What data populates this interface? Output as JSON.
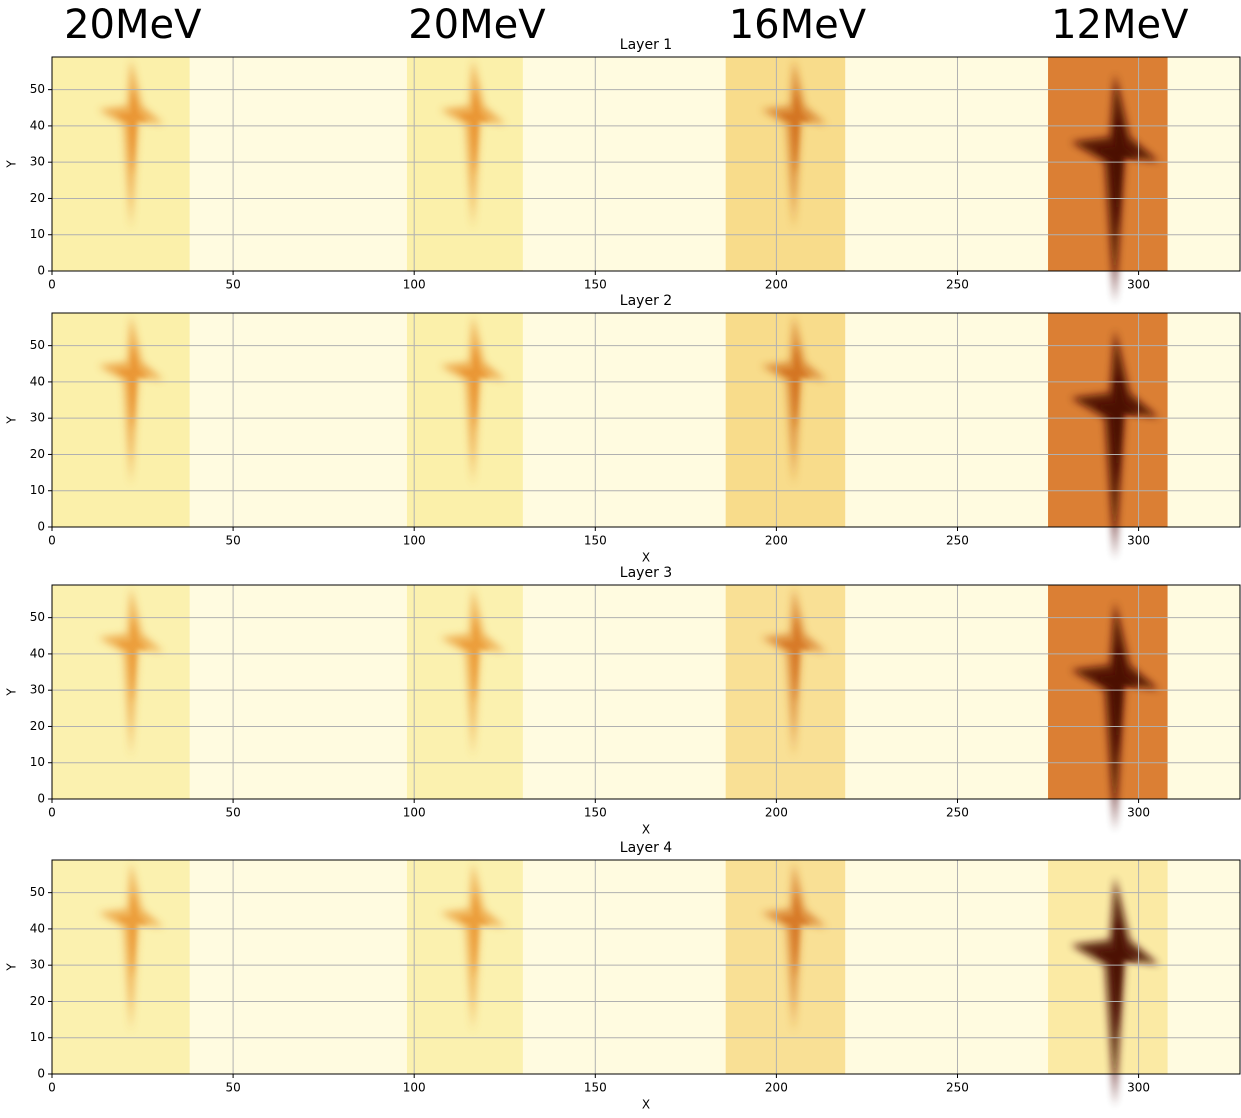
{
  "energy_labels": [
    "20MeV",
    "20MeV",
    "16MeV",
    "12MeV"
  ],
  "chart_data": [
    {
      "type": "heatmap",
      "title": "Layer 1",
      "ylabel": "Y",
      "xlim": [
        0,
        328
      ],
      "ylim": [
        0,
        59
      ],
      "xticks": [
        0,
        50,
        100,
        150,
        200,
        250,
        300
      ],
      "yticks": [
        0,
        10,
        20,
        30,
        40,
        50
      ],
      "grid": true,
      "background": "#fffbe0",
      "bands": [
        {
          "x0": 0,
          "x1": 38,
          "color": "#fbefa6",
          "feature_color": "#e9922e"
        },
        {
          "x0": 98,
          "x1": 130,
          "color": "#fbefa6",
          "feature_color": "#e9922e"
        },
        {
          "x0": 186,
          "x1": 219,
          "color": "#f8da86",
          "feature_color": "#d2701a"
        },
        {
          "x0": 275,
          "x1": 308,
          "color": "#d9782a",
          "feature_color": "#4a0c00"
        }
      ]
    },
    {
      "type": "heatmap",
      "title": "Layer 2",
      "xlabel": "X",
      "ylabel": "Y",
      "xlim": [
        0,
        328
      ],
      "ylim": [
        0,
        59
      ],
      "xticks": [
        0,
        50,
        100,
        150,
        200,
        250,
        300
      ],
      "yticks": [
        0,
        10,
        20,
        30,
        40,
        50
      ],
      "grid": true,
      "background": "#fffbe0",
      "bands": [
        {
          "x0": 0,
          "x1": 38,
          "color": "#fbefa6",
          "feature_color": "#e9922e"
        },
        {
          "x0": 98,
          "x1": 130,
          "color": "#fbefa6",
          "feature_color": "#e9922e"
        },
        {
          "x0": 186,
          "x1": 219,
          "color": "#f8da86",
          "feature_color": "#d2701a"
        },
        {
          "x0": 275,
          "x1": 308,
          "color": "#d9782a",
          "feature_color": "#4a0c00"
        }
      ]
    },
    {
      "type": "heatmap",
      "title": "Layer 3",
      "xlabel": "X",
      "ylabel": "Y",
      "xlim": [
        0,
        328
      ],
      "ylim": [
        0,
        59
      ],
      "xticks": [
        0,
        50,
        100,
        150,
        200,
        250,
        300
      ],
      "yticks": [
        0,
        10,
        20,
        30,
        40,
        50
      ],
      "grid": true,
      "background": "#fffbe0",
      "bands": [
        {
          "x0": 0,
          "x1": 38,
          "color": "#fbf0ac",
          "feature_color": "#eb9a36"
        },
        {
          "x0": 98,
          "x1": 130,
          "color": "#fbf0ac",
          "feature_color": "#eb9a36"
        },
        {
          "x0": 186,
          "x1": 219,
          "color": "#f9de90",
          "feature_color": "#d57520"
        },
        {
          "x0": 275,
          "x1": 308,
          "color": "#d9782a",
          "feature_color": "#4a0c00"
        }
      ]
    },
    {
      "type": "heatmap",
      "title": "Layer 4",
      "xlabel": "X",
      "ylabel": "Y",
      "xlim": [
        0,
        328
      ],
      "ylim": [
        0,
        59
      ],
      "xticks": [
        0,
        50,
        100,
        150,
        200,
        250,
        300
      ],
      "yticks": [
        0,
        10,
        20,
        30,
        40,
        50
      ],
      "grid": true,
      "background": "#fffbe0",
      "bands": [
        {
          "x0": 0,
          "x1": 38,
          "color": "#fbf0ac",
          "feature_color": "#eb9a36"
        },
        {
          "x0": 98,
          "x1": 130,
          "color": "#fbf0ac",
          "feature_color": "#eb9a36"
        },
        {
          "x0": 186,
          "x1": 219,
          "color": "#f9de90",
          "feature_color": "#d57520"
        },
        {
          "x0": 275,
          "x1": 308,
          "color": "#fbe9a0",
          "feature_color": "#4a0c00"
        }
      ]
    }
  ]
}
